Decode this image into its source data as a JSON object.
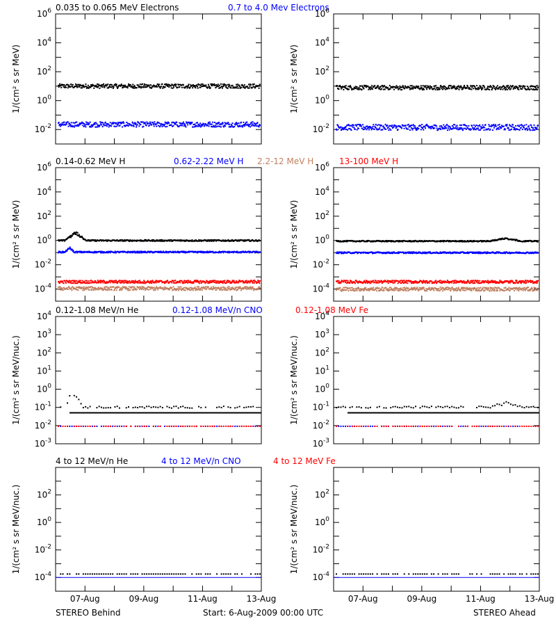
{
  "colors": {
    "black": "#000000",
    "blue": "#0000ff",
    "tan": "#c08060",
    "red": "#ff0000",
    "axis": "#000000"
  },
  "footer": {
    "left": "STEREO Behind",
    "center": "Start:  6-Aug-2009 00:00 UTC",
    "right": "STEREO Ahead"
  },
  "x_ticks": [
    "07-Aug",
    "09-Aug",
    "11-Aug",
    "13-Aug"
  ],
  "chart_data": [
    {
      "type": "scatter",
      "row": 0,
      "ylabel": "1/(cm² s sr MeV)",
      "legend": [
        {
          "text": "0.035 to 0.065 MeV Electrons",
          "color": "#000000"
        },
        {
          "text": "0.7 to 4.0 Mev Electrons",
          "color": "#0000ff"
        }
      ],
      "ylim_log10": [
        -3,
        6
      ],
      "yticks": [
        {
          "exp": "-2",
          "value": -2
        },
        {
          "exp": "0",
          "value": 0
        },
        {
          "exp": "2",
          "value": 2
        },
        {
          "exp": "4",
          "value": 4
        },
        {
          "exp": "6",
          "value": 6
        }
      ],
      "panels": [
        {
          "side": "behind",
          "series": [
            {
              "name": "0.035 to 0.065 MeV Electrons",
              "color": "#000000",
              "base_log10": 1.05,
              "spread": 0.15
            },
            {
              "name": "0.7 to 4.0 Mev Electrons",
              "color": "#0000ff",
              "base_log10": -1.6,
              "spread": 0.18
            }
          ]
        },
        {
          "side": "ahead",
          "series": [
            {
              "name": "0.035 to 0.065 MeV Electrons",
              "color": "#000000",
              "base_log10": 0.95,
              "spread": 0.15
            },
            {
              "name": "0.7 to 4.0 Mev Electrons",
              "color": "#0000ff",
              "base_log10": -1.8,
              "spread": 0.2
            }
          ]
        }
      ]
    },
    {
      "type": "scatter",
      "row": 1,
      "ylabel": "1/(cm² s sr MeV)",
      "legend": [
        {
          "text": "0.14-0.62 MeV H",
          "color": "#000000"
        },
        {
          "text": "0.62-2.22 MeV H",
          "color": "#0000ff"
        },
        {
          "text": "2.2-12 MeV H",
          "color": "#c08060"
        },
        {
          "text": "13-100 MeV H",
          "color": "#ff0000"
        }
      ],
      "ylim_log10": [
        -5,
        6
      ],
      "yticks": [
        {
          "exp": "-4",
          "value": -4
        },
        {
          "exp": "-2",
          "value": -2
        },
        {
          "exp": "0",
          "value": 0
        },
        {
          "exp": "2",
          "value": 2
        },
        {
          "exp": "4",
          "value": 4
        },
        {
          "exp": "6",
          "value": 6
        }
      ],
      "panels": [
        {
          "side": "behind",
          "series": [
            {
              "name": "0.14-0.62 MeV H",
              "color": "#000000",
              "base_log10": 0.05,
              "spread": 0.06,
              "bump": {
                "x0": 0.03,
                "x1": 0.14,
                "amp": 0.8
              }
            },
            {
              "name": "0.62-2.22 MeV H",
              "color": "#0000ff",
              "base_log10": -0.9,
              "spread": 0.06,
              "bump": {
                "x0": 0.03,
                "x1": 0.08,
                "amp": 0.4
              }
            },
            {
              "name": "2.2-12 MeV H",
              "color": "#c08060",
              "base_log10": -3.9,
              "spread": 0.15
            },
            {
              "name": "13-100 MeV H",
              "color": "#ff0000",
              "base_log10": -3.35,
              "spread": 0.12
            }
          ]
        },
        {
          "side": "ahead",
          "series": [
            {
              "name": "0.14-0.62 MeV H",
              "color": "#000000",
              "base_log10": 0.0,
              "spread": 0.05,
              "bump": {
                "x0": 0.76,
                "x1": 0.92,
                "amp": 0.3
              }
            },
            {
              "name": "0.62-2.22 MeV H",
              "color": "#0000ff",
              "base_log10": -0.95,
              "spread": 0.06
            },
            {
              "name": "2.2-12 MeV H",
              "color": "#c08060",
              "base_log10": -3.95,
              "spread": 0.15
            },
            {
              "name": "13-100 MeV H",
              "color": "#ff0000",
              "base_log10": -3.35,
              "spread": 0.12
            }
          ]
        }
      ]
    },
    {
      "type": "scatter",
      "row": 2,
      "ylabel": "1/(cm² s sr MeV/nuc.)",
      "legend": [
        {
          "text": "0.12-1.08 MeV/n He",
          "color": "#000000"
        },
        {
          "text": "0.12-1.08 MeV/n CNO",
          "color": "#0000ff"
        },
        {
          "text": "0.12-1.08 MeV Fe",
          "color": "#ff0000"
        }
      ],
      "ylim_log10": [
        -3,
        4
      ],
      "yticks": [
        {
          "exp": "-3",
          "value": -3
        },
        {
          "exp": "-2",
          "value": -2
        },
        {
          "exp": "-1",
          "value": -1
        },
        {
          "exp": "0",
          "value": 0
        },
        {
          "exp": "1",
          "value": 1
        },
        {
          "exp": "2",
          "value": 2
        },
        {
          "exp": "3",
          "value": 3
        },
        {
          "exp": "4",
          "value": 4
        }
      ],
      "panels": [
        {
          "side": "behind",
          "floor_log10": -1.3,
          "series": [
            {
              "name": "0.12-1.08 MeV/n He",
              "color": "#000000",
              "base_log10": -0.95,
              "spread": 0.05,
              "sparse": true,
              "bump": {
                "x0": 0.03,
                "x1": 0.12,
                "amp": 1.1
              }
            },
            {
              "name": "0.12-1.08 MeV/n CNO",
              "color": "#0000ff",
              "base_log10": -2.0,
              "spread": 0.0,
              "sparse": true
            },
            {
              "name": "0.12-1.08 MeV Fe",
              "color": "#ff0000",
              "base_log10": -2.0,
              "spread": 0.0,
              "sparse": true
            }
          ]
        },
        {
          "side": "ahead",
          "floor_log10": -1.3,
          "series": [
            {
              "name": "0.12-1.08 MeV/n He",
              "color": "#000000",
              "base_log10": -0.95,
              "spread": 0.05,
              "sparse": true,
              "bump": {
                "x0": 0.76,
                "x1": 0.92,
                "amp": 0.3
              }
            },
            {
              "name": "0.12-1.08 MeV/n CNO",
              "color": "#0000ff",
              "base_log10": -2.0,
              "spread": 0.0,
              "sparse": true
            },
            {
              "name": "0.12-1.08 MeV Fe",
              "color": "#ff0000",
              "base_log10": -2.0,
              "spread": 0.0,
              "sparse": true
            }
          ]
        }
      ]
    },
    {
      "type": "scatter",
      "row": 3,
      "ylabel": "1/(cm² s sr MeV/nuc.)",
      "legend": [
        {
          "text": "4 to 12 MeV/n He",
          "color": "#000000"
        },
        {
          "text": "4 to 12 MeV/n CNO",
          "color": "#0000ff"
        },
        {
          "text": "4 to 12 MeV Fe",
          "color": "#ff0000"
        }
      ],
      "ylim_log10": [
        -5,
        4
      ],
      "yticks": [
        {
          "exp": "-4",
          "value": -4
        },
        {
          "exp": "-2",
          "value": -2
        },
        {
          "exp": "0",
          "value": 0
        },
        {
          "exp": "2",
          "value": 2
        }
      ],
      "panels": [
        {
          "side": "behind",
          "line_log10": -4.0,
          "series": [
            {
              "name": "4 to 12 MeV/n He",
              "color": "#000000",
              "base_log10": -3.7,
              "spread": 0.0,
              "sparse": true
            },
            {
              "name": "4 to 12 MeV/n CNO",
              "color": "#0000ff",
              "base_log10": -4.9,
              "spread": 0.0,
              "sparse": true
            }
          ]
        },
        {
          "side": "ahead",
          "line_log10": -4.0,
          "series": [
            {
              "name": "4 to 12 MeV/n He",
              "color": "#000000",
              "base_log10": -3.7,
              "spread": 0.0,
              "sparse": true
            },
            {
              "name": "4 to 12 MeV/n CNO",
              "color": "#0000ff",
              "base_log10": -4.9,
              "spread": 0.0,
              "sparse": true
            }
          ]
        }
      ]
    }
  ]
}
